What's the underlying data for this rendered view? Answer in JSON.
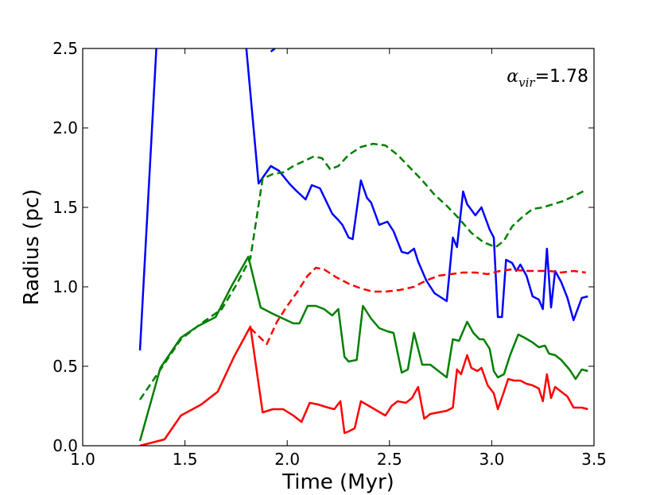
{
  "chart_data": {
    "type": "line",
    "title": "",
    "xlabel": "Time (Myr)",
    "ylabel": "Radius (pc)",
    "xlim": [
      1.0,
      3.5
    ],
    "ylim": [
      0.0,
      2.5
    ],
    "xticks": [
      "1.0",
      "1.5",
      "2.0",
      "2.5",
      "3.0",
      "3.5"
    ],
    "yticks": [
      "0.0",
      "0.5",
      "1.0",
      "1.5",
      "2.0",
      "2.5"
    ],
    "grid": false,
    "legend": "none",
    "annotation": {
      "symbol": "α",
      "subscript": "vir",
      "value": "=1.78",
      "position": "top-right"
    },
    "series": [
      {
        "color": "#0000ff",
        "style": "solid",
        "segments": [
          [
            [
              1.28,
              0.6
            ],
            [
              1.36,
              2.5
            ]
          ],
          [
            [
              1.8,
              2.5
            ],
            [
              1.86,
              1.65
            ],
            [
              1.92,
              1.76
            ],
            [
              1.96,
              1.73
            ],
            [
              2.01,
              1.65
            ],
            [
              2.04,
              1.61
            ],
            [
              2.09,
              1.55
            ],
            [
              2.12,
              1.64
            ],
            [
              2.16,
              1.62
            ],
            [
              2.22,
              1.46
            ],
            [
              2.25,
              1.42
            ],
            [
              2.27,
              1.39
            ],
            [
              2.3,
              1.31
            ],
            [
              2.32,
              1.3
            ],
            [
              2.36,
              1.67
            ],
            [
              2.39,
              1.56
            ],
            [
              2.41,
              1.53
            ],
            [
              2.45,
              1.39
            ],
            [
              2.49,
              1.41
            ],
            [
              2.52,
              1.35
            ],
            [
              2.56,
              1.22
            ],
            [
              2.59,
              1.21
            ],
            [
              2.62,
              1.24
            ],
            [
              2.64,
              1.16
            ],
            [
              2.68,
              1.04
            ],
            [
              2.72,
              0.96
            ],
            [
              2.78,
              0.91
            ],
            [
              2.81,
              1.31
            ],
            [
              2.83,
              1.25
            ],
            [
              2.86,
              1.6
            ],
            [
              2.88,
              1.52
            ],
            [
              2.92,
              1.45
            ],
            [
              2.95,
              1.5
            ],
            [
              2.99,
              1.36
            ],
            [
              3.01,
              1.31
            ],
            [
              3.03,
              0.81
            ],
            [
              3.05,
              0.81
            ],
            [
              3.07,
              1.17
            ],
            [
              3.1,
              1.15
            ],
            [
              3.12,
              1.1
            ],
            [
              3.14,
              1.14
            ],
            [
              3.17,
              1.07
            ],
            [
              3.2,
              0.94
            ],
            [
              3.23,
              0.92
            ],
            [
              3.25,
              0.86
            ],
            [
              3.27,
              1.24
            ],
            [
              3.29,
              0.87
            ],
            [
              3.31,
              1.1
            ],
            [
              3.34,
              1.03
            ],
            [
              3.37,
              0.93
            ],
            [
              3.4,
              0.79
            ],
            [
              3.44,
              0.93
            ],
            [
              3.47,
              0.94
            ]
          ],
          [
            [
              1.92,
              2.48
            ],
            [
              1.94,
              2.5
            ]
          ]
        ]
      },
      {
        "color": "#008000",
        "style": "solid",
        "segments": [
          [
            [
              1.28,
              0.03
            ],
            [
              1.38,
              0.49
            ],
            [
              1.48,
              0.68
            ],
            [
              1.56,
              0.75
            ],
            [
              1.65,
              0.81
            ],
            [
              1.73,
              1.01
            ],
            [
              1.81,
              1.19
            ],
            [
              1.87,
              0.87
            ],
            [
              1.93,
              0.83
            ],
            [
              1.98,
              0.8
            ],
            [
              2.03,
              0.77
            ],
            [
              2.06,
              0.77
            ],
            [
              2.1,
              0.88
            ],
            [
              2.14,
              0.88
            ],
            [
              2.18,
              0.86
            ],
            [
              2.22,
              0.82
            ],
            [
              2.25,
              0.86
            ],
            [
              2.28,
              0.56
            ],
            [
              2.3,
              0.53
            ],
            [
              2.34,
              0.54
            ],
            [
              2.37,
              0.88
            ],
            [
              2.41,
              0.8
            ],
            [
              2.45,
              0.74
            ],
            [
              2.49,
              0.72
            ],
            [
              2.52,
              0.71
            ],
            [
              2.56,
              0.46
            ],
            [
              2.59,
              0.48
            ],
            [
              2.62,
              0.71
            ],
            [
              2.66,
              0.51
            ],
            [
              2.7,
              0.51
            ],
            [
              2.74,
              0.47
            ],
            [
              2.78,
              0.43
            ],
            [
              2.81,
              0.67
            ],
            [
              2.84,
              0.66
            ],
            [
              2.88,
              0.78
            ],
            [
              2.91,
              0.71
            ],
            [
              2.94,
              0.67
            ],
            [
              2.96,
              0.67
            ],
            [
              2.99,
              0.61
            ],
            [
              3.01,
              0.47
            ],
            [
              3.03,
              0.43
            ],
            [
              3.06,
              0.45
            ],
            [
              3.09,
              0.57
            ],
            [
              3.13,
              0.7
            ],
            [
              3.16,
              0.68
            ],
            [
              3.2,
              0.65
            ],
            [
              3.23,
              0.62
            ],
            [
              3.26,
              0.63
            ],
            [
              3.28,
              0.58
            ],
            [
              3.31,
              0.57
            ],
            [
              3.34,
              0.54
            ],
            [
              3.38,
              0.48
            ],
            [
              3.41,
              0.42
            ],
            [
              3.44,
              0.48
            ],
            [
              3.47,
              0.47
            ]
          ]
        ]
      },
      {
        "color": "#ff0000",
        "style": "solid",
        "segments": [
          [
            [
              1.28,
              0.0
            ],
            [
              1.4,
              0.04
            ],
            [
              1.48,
              0.19
            ],
            [
              1.58,
              0.26
            ],
            [
              1.66,
              0.34
            ],
            [
              1.74,
              0.56
            ],
            [
              1.82,
              0.75
            ],
            [
              1.88,
              0.21
            ],
            [
              1.93,
              0.23
            ],
            [
              1.98,
              0.23
            ],
            [
              2.03,
              0.19
            ],
            [
              2.07,
              0.15
            ],
            [
              2.11,
              0.27
            ],
            [
              2.15,
              0.26
            ],
            [
              2.2,
              0.24
            ],
            [
              2.23,
              0.23
            ],
            [
              2.26,
              0.28
            ],
            [
              2.28,
              0.08
            ],
            [
              2.3,
              0.09
            ],
            [
              2.33,
              0.11
            ],
            [
              2.36,
              0.28
            ],
            [
              2.4,
              0.25
            ],
            [
              2.44,
              0.22
            ],
            [
              2.48,
              0.19
            ],
            [
              2.51,
              0.25
            ],
            [
              2.54,
              0.28
            ],
            [
              2.58,
              0.27
            ],
            [
              2.61,
              0.3
            ],
            [
              2.64,
              0.37
            ],
            [
              2.67,
              0.17
            ],
            [
              2.7,
              0.2
            ],
            [
              2.74,
              0.21
            ],
            [
              2.78,
              0.22
            ],
            [
              2.81,
              0.24
            ],
            [
              2.83,
              0.48
            ],
            [
              2.85,
              0.45
            ],
            [
              2.88,
              0.57
            ],
            [
              2.9,
              0.49
            ],
            [
              2.93,
              0.47
            ],
            [
              2.95,
              0.49
            ],
            [
              2.98,
              0.38
            ],
            [
              3.01,
              0.33
            ],
            [
              3.03,
              0.23
            ],
            [
              3.06,
              0.34
            ],
            [
              3.08,
              0.42
            ],
            [
              3.11,
              0.41
            ],
            [
              3.14,
              0.41
            ],
            [
              3.17,
              0.39
            ],
            [
              3.2,
              0.38
            ],
            [
              3.23,
              0.36
            ],
            [
              3.25,
              0.28
            ],
            [
              3.27,
              0.45
            ],
            [
              3.29,
              0.3
            ],
            [
              3.31,
              0.37
            ],
            [
              3.34,
              0.34
            ],
            [
              3.37,
              0.31
            ],
            [
              3.4,
              0.24
            ],
            [
              3.44,
              0.24
            ],
            [
              3.47,
              0.23
            ]
          ]
        ]
      },
      {
        "color": "#008000",
        "style": "dashed",
        "segments": [
          [
            [
              1.28,
              0.29
            ],
            [
              1.37,
              0.46
            ],
            [
              1.48,
              0.67
            ],
            [
              1.58,
              0.77
            ],
            [
              1.68,
              0.86
            ],
            [
              1.75,
              1.01
            ],
            [
              1.82,
              1.18
            ],
            [
              1.88,
              1.68
            ],
            [
              1.93,
              1.71
            ],
            [
              1.98,
              1.72
            ],
            [
              2.03,
              1.76
            ],
            [
              2.08,
              1.79
            ],
            [
              2.13,
              1.82
            ],
            [
              2.17,
              1.81
            ],
            [
              2.21,
              1.74
            ],
            [
              2.25,
              1.76
            ],
            [
              2.3,
              1.83
            ],
            [
              2.36,
              1.88
            ],
            [
              2.42,
              1.9
            ],
            [
              2.48,
              1.89
            ],
            [
              2.54,
              1.83
            ],
            [
              2.6,
              1.75
            ],
            [
              2.66,
              1.67
            ],
            [
              2.72,
              1.58
            ],
            [
              2.78,
              1.51
            ],
            [
              2.84,
              1.43
            ],
            [
              2.9,
              1.34
            ],
            [
              2.96,
              1.28
            ],
            [
              3.02,
              1.25
            ],
            [
              3.06,
              1.29
            ],
            [
              3.1,
              1.38
            ],
            [
              3.15,
              1.44
            ],
            [
              3.2,
              1.49
            ],
            [
              3.25,
              1.5
            ],
            [
              3.3,
              1.52
            ],
            [
              3.35,
              1.54
            ],
            [
              3.4,
              1.57
            ],
            [
              3.46,
              1.61
            ]
          ]
        ]
      },
      {
        "color": "#ff0000",
        "style": "dashed",
        "segments": [
          [
            [
              1.82,
              0.74
            ],
            [
              1.9,
              0.64
            ],
            [
              1.95,
              0.78
            ],
            [
              2.0,
              0.88
            ],
            [
              2.05,
              0.97
            ],
            [
              2.1,
              1.07
            ],
            [
              2.14,
              1.12
            ],
            [
              2.18,
              1.11
            ],
            [
              2.24,
              1.06
            ],
            [
              2.3,
              1.02
            ],
            [
              2.36,
              0.99
            ],
            [
              2.42,
              0.97
            ],
            [
              2.48,
              0.97
            ],
            [
              2.55,
              0.98
            ],
            [
              2.62,
              1.0
            ],
            [
              2.68,
              1.04
            ],
            [
              2.74,
              1.07
            ],
            [
              2.8,
              1.08
            ],
            [
              2.86,
              1.09
            ],
            [
              2.92,
              1.09
            ],
            [
              2.98,
              1.08
            ],
            [
              3.04,
              1.1
            ],
            [
              3.1,
              1.11
            ],
            [
              3.16,
              1.1
            ],
            [
              3.22,
              1.1
            ],
            [
              3.28,
              1.1
            ],
            [
              3.34,
              1.09
            ],
            [
              3.4,
              1.1
            ],
            [
              3.46,
              1.09
            ]
          ]
        ]
      }
    ]
  }
}
